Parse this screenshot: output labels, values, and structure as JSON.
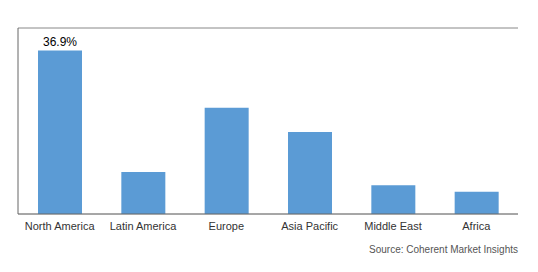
{
  "chart_data": {
    "type": "bar",
    "categories": [
      "North America",
      "Latin America",
      "Europe",
      "Asia Pacific",
      "Middle East",
      "Africa"
    ],
    "values": [
      36.9,
      9.5,
      24.0,
      18.5,
      6.5,
      5.0
    ],
    "color": "#5b9bd5",
    "ylim": [
      0,
      42
    ],
    "yticks": [
      5,
      10,
      15,
      20,
      25,
      30,
      35,
      40
    ],
    "grid": true,
    "tick_labels": "x",
    "annotations": [
      {
        "category": "North America",
        "text": "36.9%"
      },
      {
        "text": "Source: Coherent Market Insights"
      }
    ]
  }
}
